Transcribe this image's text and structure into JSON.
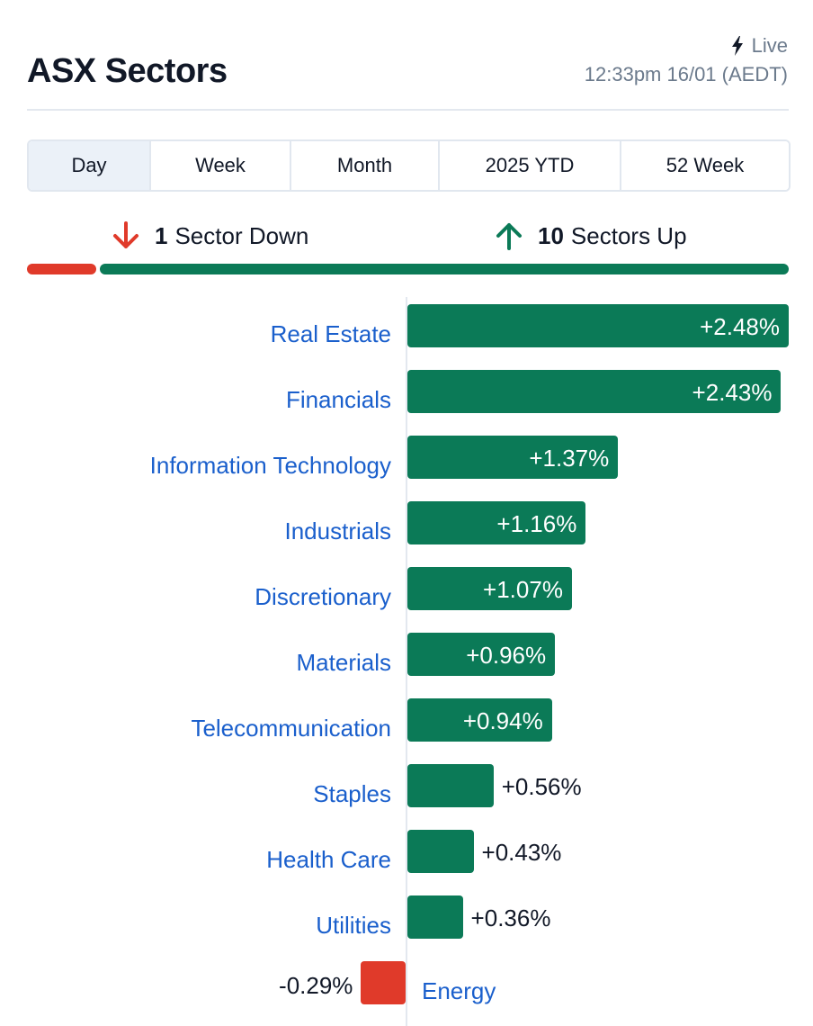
{
  "header": {
    "title": "ASX Sectors",
    "live_label": "Live",
    "timestamp": "12:33pm 16/01 (AEDT)"
  },
  "tabs": [
    {
      "label": "Day",
      "active": true
    },
    {
      "label": "Week",
      "active": false
    },
    {
      "label": "Month",
      "active": false
    },
    {
      "label": "2025 YTD",
      "active": false
    },
    {
      "label": "52 Week",
      "active": false
    }
  ],
  "summary": {
    "down_count": "1",
    "down_label": "Sector Down",
    "up_count": "10",
    "up_label": "Sectors Up"
  },
  "colors": {
    "up": "#0b7a57",
    "down": "#e03a2a",
    "link": "#1a5fcc"
  },
  "chart_data": {
    "type": "bar",
    "orientation": "horizontal",
    "categories": [
      "Real Estate",
      "Financials",
      "Information Technology",
      "Industrials",
      "Discretionary",
      "Materials",
      "Telecommunication",
      "Staples",
      "Health Care",
      "Utilities",
      "Energy"
    ],
    "values": [
      2.48,
      2.43,
      1.37,
      1.16,
      1.07,
      0.96,
      0.94,
      0.56,
      0.43,
      0.36,
      -0.29
    ],
    "labels": [
      "+2.48%",
      "+2.43%",
      "+1.37%",
      "+1.16%",
      "+1.07%",
      "+0.96%",
      "+0.94%",
      "+0.56%",
      "+0.43%",
      "+0.36%",
      "-0.29%"
    ],
    "xlim": [
      -0.29,
      2.48
    ],
    "grid": false,
    "legend": "none"
  }
}
